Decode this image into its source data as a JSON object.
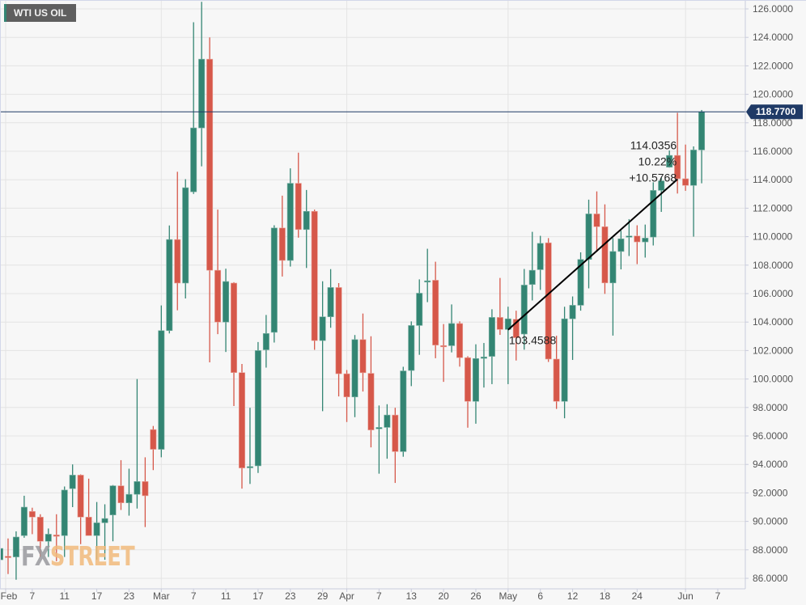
{
  "header": {
    "title": "WTI US OIL"
  },
  "watermark": {
    "part1": "FX",
    "part2": "STREET"
  },
  "colors": {
    "up": "#338573",
    "down": "#d6584a",
    "price_line": "#1f3a66",
    "grid": "#e4e4e4",
    "bg": "#f7f7f7"
  },
  "chart_data": {
    "type": "candlestick",
    "title": "WTI US OIL",
    "ylim": [
      86,
      126
    ],
    "yticks": [
      "86.0000",
      "88.0000",
      "90.0000",
      "92.0000",
      "94.0000",
      "96.0000",
      "98.0000",
      "100.0000",
      "102.0000",
      "104.0000",
      "106.0000",
      "108.0000",
      "110.0000",
      "112.0000",
      "114.0000",
      "116.0000",
      "118.0000",
      "120.0000",
      "122.0000",
      "124.0000",
      "126.0000"
    ],
    "xticks": [
      {
        "label": "Feb",
        "index": 0.7,
        "month": true
      },
      {
        "label": "7",
        "index": 4
      },
      {
        "label": "11",
        "index": 8
      },
      {
        "label": "17",
        "index": 12
      },
      {
        "label": "23",
        "index": 16
      },
      {
        "label": "Mar",
        "index": 20,
        "month": true
      },
      {
        "label": "7",
        "index": 24
      },
      {
        "label": "11",
        "index": 28
      },
      {
        "label": "17",
        "index": 32
      },
      {
        "label": "23",
        "index": 36
      },
      {
        "label": "29",
        "index": 40
      },
      {
        "label": "Apr",
        "index": 43,
        "month": true
      },
      {
        "label": "7",
        "index": 47
      },
      {
        "label": "13",
        "index": 51
      },
      {
        "label": "20",
        "index": 55
      },
      {
        "label": "26",
        "index": 59
      },
      {
        "label": "May",
        "index": 63,
        "month": true
      },
      {
        "label": "6",
        "index": 67
      },
      {
        "label": "12",
        "index": 71
      },
      {
        "label": "18",
        "index": 75
      },
      {
        "label": "24",
        "index": 79
      },
      {
        "label": "Jun",
        "index": 85,
        "month": true
      },
      {
        "label": "7",
        "index": 89
      }
    ],
    "candles_ohlc": [
      [
        87.3,
        88.2,
        86.5,
        88.1
      ],
      [
        87.55,
        88.8,
        86.3,
        87.45
      ],
      [
        87.5,
        89.3,
        85.9,
        88.9
      ],
      [
        89.0,
        91.8,
        88.85,
        91.0
      ],
      [
        90.7,
        90.96,
        89.1,
        90.3
      ],
      [
        90.3,
        90.5,
        87.5,
        88.6
      ],
      [
        88.6,
        89.5,
        87.5,
        89.1
      ],
      [
        89.05,
        90.5,
        87.2,
        88.95
      ],
      [
        89.0,
        92.45,
        87.5,
        92.2
      ],
      [
        92.3,
        94.0,
        91.0,
        93.25
      ],
      [
        93.25,
        93.3,
        88.4,
        90.3
      ],
      [
        90.3,
        93.0,
        89.0,
        89.0
      ],
      [
        89.0,
        91.36,
        87.3,
        89.9
      ],
      [
        89.9,
        91.2,
        87.3,
        90.2
      ],
      [
        90.45,
        92.55,
        88.6,
        92.5
      ],
      [
        92.5,
        94.3,
        90.8,
        91.3
      ],
      [
        91.3,
        93.7,
        90.4,
        91.9
      ],
      [
        91.9,
        100.0,
        90.9,
        92.8
      ],
      [
        92.8,
        94.5,
        89.6,
        91.8
      ],
      [
        96.45,
        96.7,
        93.6,
        95.06
      ],
      [
        95.06,
        105.17,
        94.5,
        103.4
      ],
      [
        103.4,
        110.79,
        103.2,
        109.8
      ],
      [
        109.8,
        114.56,
        104.83,
        106.74
      ],
      [
        106.74,
        114.04,
        105.66,
        113.44
      ],
      [
        113.15,
        125.06,
        113.0,
        117.64
      ],
      [
        117.64,
        126.5,
        114.94,
        122.47
      ],
      [
        122.47,
        124.0,
        101.17,
        107.64
      ],
      [
        107.64,
        111.9,
        103.15,
        104.0
      ],
      [
        104.0,
        107.75,
        101.9,
        106.85
      ],
      [
        106.74,
        106.8,
        98.1,
        100.45
      ],
      [
        100.45,
        101.06,
        92.3,
        93.75
      ],
      [
        93.8,
        97.98,
        92.63,
        93.85
      ],
      [
        93.9,
        102.6,
        93.4,
        102.0
      ],
      [
        102.05,
        104.5,
        100.8,
        103.2
      ],
      [
        103.28,
        110.8,
        102.56,
        110.61
      ],
      [
        110.61,
        112.88,
        107.2,
        108.33
      ],
      [
        108.33,
        114.8,
        107.9,
        113.75
      ],
      [
        113.75,
        115.9,
        109.93,
        110.5
      ],
      [
        110.5,
        113.28,
        107.8,
        111.78
      ],
      [
        111.78,
        111.9,
        102.05,
        102.7
      ],
      [
        102.7,
        106.87,
        97.74,
        104.37
      ],
      [
        104.37,
        107.72,
        103.6,
        106.43
      ],
      [
        106.43,
        106.74,
        98.78,
        100.37
      ],
      [
        100.37,
        100.63,
        96.98,
        98.74
      ],
      [
        98.74,
        103.09,
        97.32,
        102.77
      ],
      [
        102.77,
        104.6,
        99.12,
        100.44
      ],
      [
        100.4,
        103.0,
        95.2,
        96.42
      ],
      [
        96.5,
        98.14,
        93.35,
        96.6
      ],
      [
        96.6,
        98.23,
        94.4,
        97.47
      ],
      [
        97.47,
        97.98,
        92.7,
        94.9
      ],
      [
        94.9,
        100.86,
        94.54,
        100.57
      ],
      [
        100.6,
        104.05,
        99.5,
        103.76
      ],
      [
        103.76,
        107.0,
        101.7,
        106.03
      ],
      [
        106.85,
        109.15,
        105.4,
        106.9
      ],
      [
        106.94,
        108.24,
        101.46,
        102.38
      ],
      [
        102.35,
        103.86,
        99.8,
        102.3
      ],
      [
        102.34,
        105.24,
        101.87,
        103.9
      ],
      [
        103.9,
        104.05,
        100.87,
        101.5
      ],
      [
        101.5,
        101.6,
        96.58,
        98.43
      ],
      [
        98.43,
        102.44,
        96.86,
        101.44
      ],
      [
        101.45,
        102.53,
        99.4,
        101.55
      ],
      [
        101.59,
        104.9,
        99.64,
        104.33
      ],
      [
        104.33,
        107.1,
        103.1,
        103.48
      ],
      [
        103.48,
        105.08,
        99.64,
        104.23
      ],
      [
        104.2,
        104.8,
        101.3,
        102.9
      ],
      [
        103.16,
        107.73,
        102.06,
        106.6
      ],
      [
        106.64,
        110.34,
        105.52,
        107.64
      ],
      [
        107.68,
        110.06,
        106.26,
        109.53
      ],
      [
        109.57,
        109.9,
        101.2,
        101.4
      ],
      [
        101.4,
        103.04,
        97.9,
        98.43
      ],
      [
        98.43,
        105.08,
        97.24,
        104.23
      ],
      [
        104.23,
        105.8,
        101.34,
        105.18
      ],
      [
        105.18,
        108.9,
        104.8,
        108.4
      ],
      [
        108.4,
        112.6,
        106.37,
        111.6
      ],
      [
        111.6,
        113.18,
        108.93,
        110.7
      ],
      [
        110.7,
        112.27,
        105.98,
        106.75
      ],
      [
        106.75,
        109.9,
        103.05,
        108.96
      ],
      [
        108.96,
        110.42,
        107.7,
        109.85
      ],
      [
        110.0,
        111.23,
        108.64,
        110.05
      ],
      [
        110.05,
        110.8,
        108.07,
        109.63
      ],
      [
        109.63,
        110.85,
        108.53,
        109.9
      ],
      [
        109.97,
        113.82,
        109.38,
        113.25
      ],
      [
        113.25,
        114.16,
        111.74,
        113.92
      ],
      [
        114.88,
        116.05,
        114.85,
        115.71
      ],
      [
        115.71,
        118.7,
        113.03,
        114.07
      ],
      [
        114.07,
        116.47,
        113.22,
        113.6
      ],
      [
        113.6,
        116.34,
        110.0,
        116.09
      ],
      [
        116.09,
        118.9,
        113.75,
        118.77
      ]
    ],
    "current_price": {
      "value": 118.77,
      "label": "118.7700"
    },
    "trendline": {
      "start": {
        "index": 63,
        "price": 103.4588,
        "label": "103.4588"
      },
      "end": {
        "index": 84,
        "price": 114.0356,
        "label": "114.0356"
      },
      "percent_label": "10.22%",
      "change_label": "+10.5768"
    }
  }
}
